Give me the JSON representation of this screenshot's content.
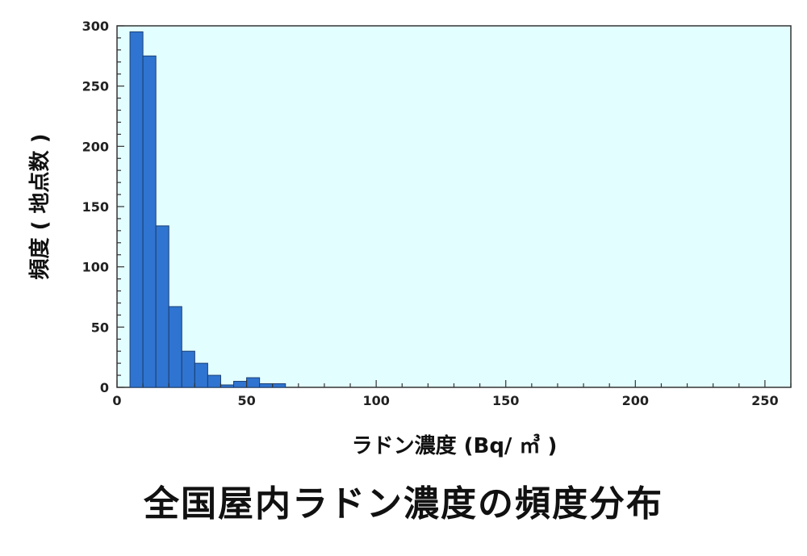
{
  "chart_data": {
    "type": "bar",
    "title": "全国屋内ラドン濃度の頻度分布",
    "xlabel": "ラドン濃度 (Bq/ ㎥ )",
    "ylabel": "頻度 ( 地点数 )",
    "bin_width": 5,
    "bins_start": [
      5,
      10,
      15,
      20,
      25,
      30,
      35,
      40,
      45,
      50,
      55,
      60
    ],
    "values": [
      295,
      275,
      134,
      67,
      30,
      20,
      10,
      2,
      5,
      8,
      3,
      3
    ],
    "xlim": [
      0,
      260
    ],
    "ylim": [
      0,
      300
    ],
    "x_ticks": [
      0,
      50,
      100,
      150,
      200,
      250
    ],
    "y_ticks": [
      0,
      50,
      100,
      150,
      200,
      250,
      300
    ],
    "x_tick_labels": [
      "0",
      "50",
      "100",
      "150",
      "200",
      "250"
    ],
    "y_tick_labels": [
      "0",
      "50",
      "100",
      "150",
      "200",
      "250",
      "300"
    ],
    "grid": false,
    "legend": "none"
  },
  "colors": {
    "plot_background": "#e3feff",
    "bar_fill": "#2f74d0",
    "bar_stroke": "#1b3f73",
    "axis": "#333333"
  }
}
